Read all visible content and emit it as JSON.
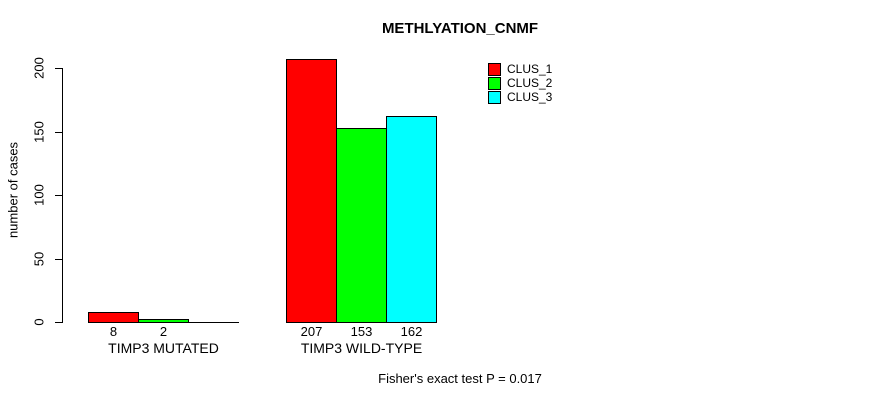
{
  "chart_data": {
    "type": "bar",
    "title": "METHLYATION_CNMF",
    "ylabel": "number of cases",
    "ylim": [
      0,
      200
    ],
    "yticks": [
      "0",
      "50",
      "100",
      "150",
      "200"
    ],
    "categories": [
      "TIMP3 MUTATED",
      "TIMP3 WILD-TYPE"
    ],
    "series": [
      {
        "name": "CLUS_1",
        "color": "#ff0000",
        "values": [
          8,
          207
        ]
      },
      {
        "name": "CLUS_2",
        "color": "#00ff00",
        "values": [
          2,
          153
        ]
      },
      {
        "name": "CLUS_3",
        "color": "#00ffff",
        "values": [
          0,
          162
        ]
      }
    ],
    "bar_value_labels": [
      [
        "8",
        "2",
        ""
      ],
      [
        "207",
        "153",
        "162"
      ]
    ],
    "legend_position": "top-right",
    "grid": false,
    "annotation": "Fisher's exact test P = 0.017",
    "background_color": "#ffffff",
    "axis_color": "#000000"
  }
}
